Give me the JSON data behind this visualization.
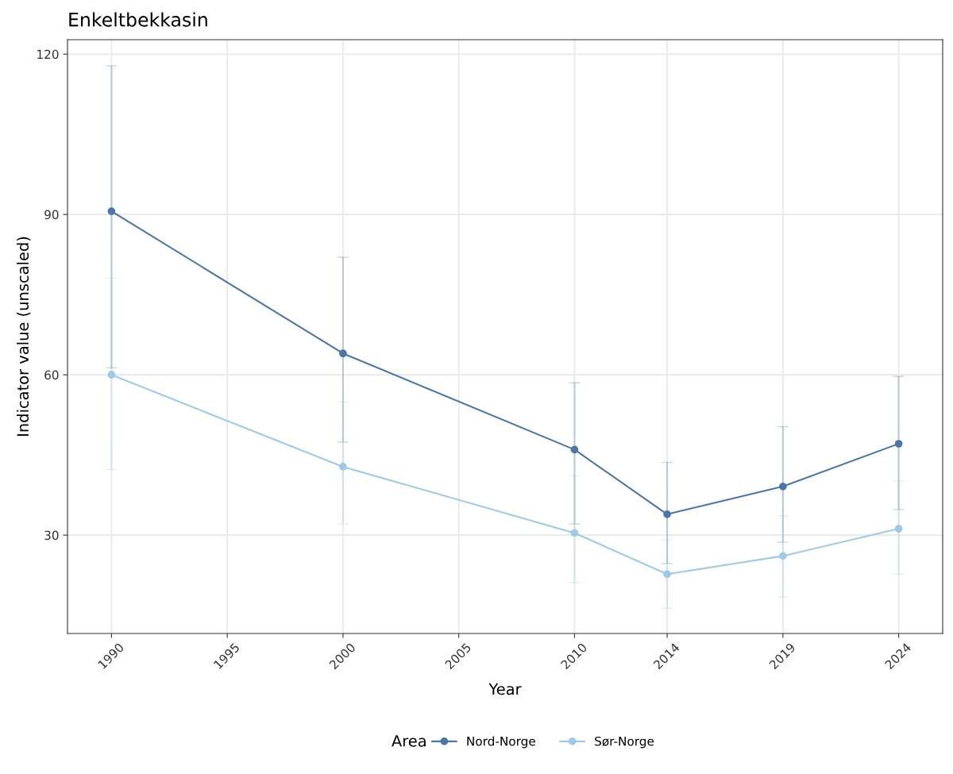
{
  "chart_data": {
    "type": "line",
    "title": "Enkeltbekkasin",
    "xlabel": "Year",
    "ylabel": "Indicator value (unscaled)",
    "legend_title": "Area",
    "x": [
      1990,
      2000,
      2010,
      2014,
      2019,
      2024
    ],
    "series": [
      {
        "name": "Nord-Norge",
        "color": "#4a77a8",
        "values": [
          90.6,
          64.0,
          46.0,
          33.9,
          39.1,
          47.1
        ],
        "errors": [
          [
            61.3,
            117.8
          ],
          [
            47.4,
            82.0
          ],
          [
            32.1,
            58.5
          ],
          [
            24.7,
            43.6
          ],
          [
            28.7,
            50.3
          ],
          [
            34.8,
            59.7
          ]
        ]
      },
      {
        "name": "Sør-Norge",
        "color": "#9ecae9",
        "values": [
          60.0,
          42.8,
          30.4,
          22.7,
          26.1,
          31.2
        ],
        "errors": [
          [
            42.3,
            78.1
          ],
          [
            32.1,
            54.9
          ],
          [
            21.1,
            41.1
          ],
          [
            16.3,
            29.1
          ],
          [
            18.4,
            33.6
          ],
          [
            22.7,
            40.1
          ]
        ]
      }
    ],
    "xlim": [
      1988.1,
      2025.9
    ],
    "xticks": [
      1990,
      1995,
      2000,
      2005,
      2010,
      2014,
      2019,
      2024
    ],
    "ylim": [
      11.6,
      122.7
    ],
    "yticks": [
      30,
      60,
      90,
      120
    ],
    "grid": true,
    "legend": "bottom",
    "marker": "circle",
    "line_style": "solid"
  }
}
